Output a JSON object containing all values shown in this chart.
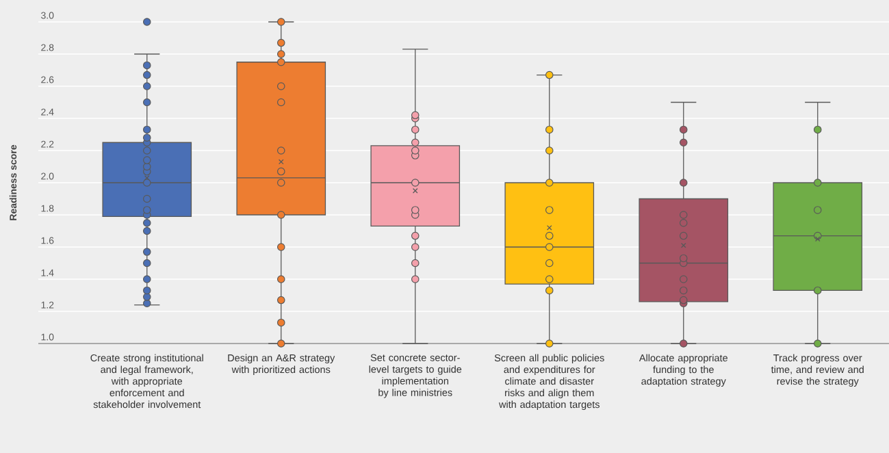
{
  "chart_data": {
    "type": "box",
    "ylabel": "Readiness score",
    "categories": [
      "Create strong institutional and legal framework, with appropriate enforcement and stakeholder involvement",
      "Design an A&R strategy with prioritized actions",
      "Set concrete sector-level targets to guide implementation by line ministries",
      "Screen all public policies and expenditures for climate and disaster risks and align them with adaptation targets",
      "Allocate appropriate funding to the adaptation strategy",
      "Track progress over time, and review and revise the strategy"
    ],
    "colors": [
      "#4a6fb5",
      "#ed7d31",
      "#f4a0ab",
      "#ffc012",
      "#a55464",
      "#70ad47"
    ],
    "boxes": [
      {
        "low": 1.24,
        "q1": 1.79,
        "median": 2.0,
        "q3": 2.25,
        "high": 2.8,
        "mean": 2.03,
        "outliers": [
          3.0
        ]
      },
      {
        "low": 1.0,
        "q1": 1.8,
        "median": 2.03,
        "q3": 2.75,
        "high": 3.0,
        "mean": 2.13
      },
      {
        "low": 1.0,
        "q1": 1.73,
        "median": 2.0,
        "q3": 2.23,
        "high": 2.83,
        "mean": 1.95
      },
      {
        "low": 1.0,
        "q1": 1.37,
        "median": 1.6,
        "q3": 2.0,
        "high": 2.67,
        "mean": 1.72
      },
      {
        "low": 1.0,
        "q1": 1.26,
        "median": 1.5,
        "q3": 1.9,
        "high": 2.5,
        "mean": 1.61
      },
      {
        "low": 1.0,
        "q1": 1.33,
        "median": 1.67,
        "q3": 2.0,
        "high": 2.5,
        "mean": 1.65
      }
    ],
    "series": [
      {
        "type": "scatter",
        "color": "#4a6fb5",
        "x": [
          "Create strong institutional and legal framework, with appropriate enforcement and stakeholder involvement",
          "Create strong institutional and legal framework, with appropriate enforcement and stakeholder involvement",
          "Create strong institutional and legal framework, with appropriate enforcement and stakeholder involvement",
          "Create strong institutional and legal framework, with appropriate enforcement and stakeholder involvement",
          "Create strong institutional and legal framework, with appropriate enforcement and stakeholder involvement",
          "Create strong institutional and legal framework, with appropriate enforcement and stakeholder involvement",
          "Create strong institutional and legal framework, with appropriate enforcement and stakeholder involvement",
          "Create strong institutional and legal framework, with appropriate enforcement and stakeholder involvement",
          "Create strong institutional and legal framework, with appropriate enforcement and stakeholder involvement",
          "Create strong institutional and legal framework, with appropriate enforcement and stakeholder involvement",
          "Create strong institutional and legal framework, with appropriate enforcement and stakeholder involvement",
          "Create strong institutional and legal framework, with appropriate enforcement and stakeholder involvement",
          "Create strong institutional and legal framework, with appropriate enforcement and stakeholder involvement",
          "Create strong institutional and legal framework, with appropriate enforcement and stakeholder involvement",
          "Create strong institutional and legal framework, with appropriate enforcement and stakeholder involvement",
          "Create strong institutional and legal framework, with appropriate enforcement and stakeholder involvement",
          "Create strong institutional and legal framework, with appropriate enforcement and stakeholder involvement",
          "Create strong institutional and legal framework, with appropriate enforcement and stakeholder involvement",
          "Create strong institutional and legal framework, with appropriate enforcement and stakeholder involvement",
          "Create strong institutional and legal framework, with appropriate enforcement and stakeholder involvement",
          "Create strong institutional and legal framework, with appropriate enforcement and stakeholder involvement",
          "Create strong institutional and legal framework, with appropriate enforcement and stakeholder involvement",
          "Create strong institutional and legal framework, with appropriate enforcement and stakeholder involvement"
        ],
        "values": [
          2.73,
          2.67,
          2.6,
          2.5,
          2.33,
          2.28,
          2.25,
          2.2,
          2.14,
          2.1,
          2.07,
          2.0,
          1.9,
          1.83,
          1.8,
          1.75,
          1.7,
          1.57,
          1.5,
          1.4,
          1.33,
          1.29,
          1.25
        ]
      },
      {
        "type": "scatter",
        "color": "#ed7d31",
        "x": [
          "Design an A&R strategy with prioritized actions",
          "Design an A&R strategy with prioritized actions",
          "Design an A&R strategy with prioritized actions",
          "Design an A&R strategy with prioritized actions",
          "Design an A&R strategy with prioritized actions",
          "Design an A&R strategy with prioritized actions",
          "Design an A&R strategy with prioritized actions",
          "Design an A&R strategy with prioritized actions",
          "Design an A&R strategy with prioritized actions",
          "Design an A&R strategy with prioritized actions",
          "Design an A&R strategy with prioritized actions",
          "Design an A&R strategy with prioritized actions",
          "Design an A&R strategy with prioritized actions",
          "Design an A&R strategy with prioritized actions",
          "Design an A&R strategy with prioritized actions"
        ],
        "values": [
          3.0,
          2.87,
          2.8,
          2.75,
          2.6,
          2.5,
          2.2,
          2.07,
          2.0,
          1.8,
          1.6,
          1.4,
          1.27,
          1.13,
          1.0
        ]
      },
      {
        "type": "scatter",
        "color": "#f4a0ab",
        "x": [
          "Set concrete sector-level targets to guide implementation by line ministries",
          "Set concrete sector-level targets to guide implementation by line ministries",
          "Set concrete sector-level targets to guide implementation by line ministries",
          "Set concrete sector-level targets to guide implementation by line ministries",
          "Set concrete sector-level targets to guide implementation by line ministries",
          "Set concrete sector-level targets to guide implementation by line ministries",
          "Set concrete sector-level targets to guide implementation by line ministries",
          "Set concrete sector-level targets to guide implementation by line ministries",
          "Set concrete sector-level targets to guide implementation by line ministries",
          "Set concrete sector-level targets to guide implementation by line ministries",
          "Set concrete sector-level targets to guide implementation by line ministries",
          "Set concrete sector-level targets to guide implementation by line ministries",
          "Set concrete sector-level targets to guide implementation by line ministries"
        ],
        "values": [
          2.42,
          2.4,
          2.33,
          2.25,
          2.2,
          2.17,
          2.0,
          1.83,
          1.8,
          1.67,
          1.6,
          1.5,
          1.4
        ]
      },
      {
        "type": "scatter",
        "color": "#ffc012",
        "x": [
          "Screen all public policies and expenditures for climate and disaster risks and align them with adaptation targets",
          "Screen all public policies and expenditures for climate and disaster risks and align them with adaptation targets",
          "Screen all public policies and expenditures for climate and disaster risks and align them with adaptation targets",
          "Screen all public policies and expenditures for climate and disaster risks and align them with adaptation targets",
          "Screen all public policies and expenditures for climate and disaster risks and align them with adaptation targets",
          "Screen all public policies and expenditures for climate and disaster risks and align them with adaptation targets",
          "Screen all public policies and expenditures for climate and disaster risks and align them with adaptation targets",
          "Screen all public policies and expenditures for climate and disaster risks and align them with adaptation targets",
          "Screen all public policies and expenditures for climate and disaster risks and align them with adaptation targets",
          "Screen all public policies and expenditures for climate and disaster risks and align them with adaptation targets",
          "Screen all public policies and expenditures for climate and disaster risks and align them with adaptation targets"
        ],
        "values": [
          2.67,
          2.33,
          2.2,
          2.0,
          1.83,
          1.67,
          1.6,
          1.5,
          1.4,
          1.33,
          1.0
        ]
      },
      {
        "type": "scatter",
        "color": "#a55464",
        "x": [
          "Allocate appropriate funding to the adaptation strategy",
          "Allocate appropriate funding to the adaptation strategy",
          "Allocate appropriate funding to the adaptation strategy",
          "Allocate appropriate funding to the adaptation strategy",
          "Allocate appropriate funding to the adaptation strategy",
          "Allocate appropriate funding to the adaptation strategy",
          "Allocate appropriate funding to the adaptation strategy",
          "Allocate appropriate funding to the adaptation strategy",
          "Allocate appropriate funding to the adaptation strategy",
          "Allocate appropriate funding to the adaptation strategy",
          "Allocate appropriate funding to the adaptation strategy",
          "Allocate appropriate funding to the adaptation strategy",
          "Allocate appropriate funding to the adaptation strategy"
        ],
        "values": [
          2.33,
          2.25,
          2.0,
          1.8,
          1.75,
          1.67,
          1.53,
          1.5,
          1.4,
          1.33,
          1.27,
          1.25,
          1.0
        ]
      },
      {
        "type": "scatter",
        "color": "#70ad47",
        "x": [
          "Track progress over time, and review and revise the strategy",
          "Track progress over time, and review and revise the strategy",
          "Track progress over time, and review and revise the strategy",
          "Track progress over time, and review and revise the strategy",
          "Track progress over time, and review and revise the strategy",
          "Track progress over time, and review and revise the strategy"
        ],
        "values": [
          2.33,
          2.0,
          1.83,
          1.67,
          1.33,
          1.0
        ]
      }
    ],
    "ylim": [
      1.0,
      3.0
    ],
    "yticks": [
      {
        "value": 1.0,
        "label": "1.0"
      },
      {
        "value": 1.2,
        "label": "1.2"
      },
      {
        "value": 1.4,
        "label": "1.4"
      },
      {
        "value": 1.6,
        "label": "1.6"
      },
      {
        "value": 1.8,
        "label": "1.8"
      },
      {
        "value": 2.0,
        "label": "2.0"
      },
      {
        "value": 2.2,
        "label": "2.2"
      },
      {
        "value": 2.4,
        "label": "2.4"
      },
      {
        "value": 2.6,
        "label": "2.6"
      },
      {
        "value": 2.8,
        "label": "2.8"
      },
      {
        "value": 3.0,
        "label": "3.0"
      }
    ],
    "grid": "y",
    "marker": "circle"
  }
}
